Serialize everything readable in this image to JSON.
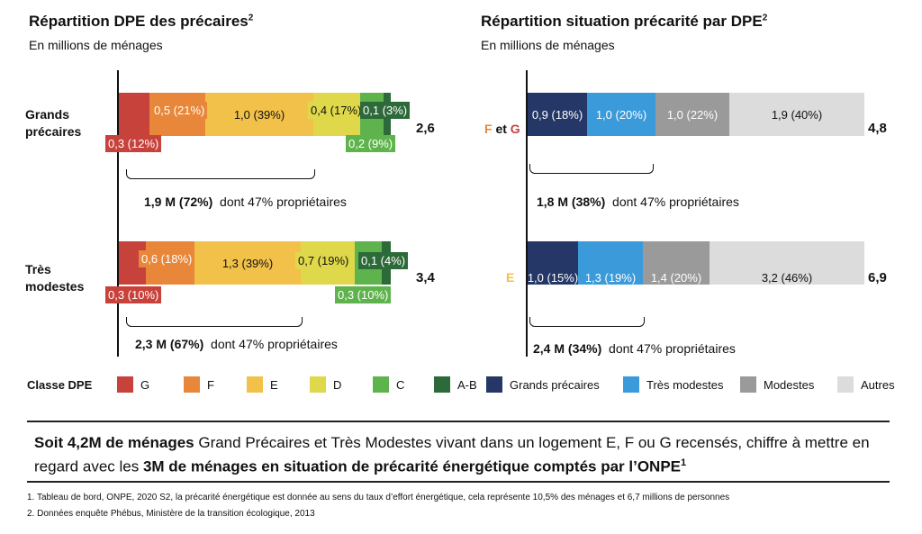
{
  "colors": {
    "G": "#c8423c",
    "F": "#e8873a",
    "E": "#f2c14a",
    "D": "#e0d84b",
    "C": "#5fb34d",
    "AB": "#2d6a3a",
    "grands": "#243766",
    "tres": "#3b9ad9",
    "modestes": "#9a9a9a",
    "autres": "#dcdcdc"
  },
  "left": {
    "title": "Répartition DPE des précaires",
    "title_sup": "2",
    "subtitle": "En millions de ménages",
    "rows": [
      {
        "label_line1": "Grands",
        "label_line2": "précaires",
        "total": "2,6",
        "labels": {
          "G": "0,3 (12%)",
          "F": "0,5 (21%)",
          "E": "1,0 (39%)",
          "D": "0,4 (17%)",
          "C": "0,2 (9%)",
          "AB": "0,1 (3%)"
        },
        "summary_bold": "1,9 M (72%)",
        "summary_text": "dont 47% propriétaires"
      },
      {
        "label_line1": "Très",
        "label_line2": "modestes",
        "total": "3,4",
        "labels": {
          "G": "0,3 (10%)",
          "F": "0,6 (18%)",
          "E": "1,3 (39%)",
          "D": "0,7 (19%)",
          "C": "0,3 (10%)",
          "AB": "0,1 (4%)"
        },
        "summary_bold": "2,3 M (67%)",
        "summary_text": "dont 47% propriétaires"
      }
    ],
    "legend_title": "Classe DPE",
    "legend": [
      "G",
      "F",
      "E",
      "D",
      "C",
      "A-B"
    ]
  },
  "right": {
    "title": "Répartition situation précarité par DPE",
    "title_sup": "2",
    "subtitle": "En millions de ménages",
    "rows": [
      {
        "label_a": "F",
        "label_mid": " et ",
        "label_b": "G",
        "total": "4,8",
        "labels": [
          "0,9 (18%)",
          "1,0 (20%)",
          "1,0 (22%)",
          "1,9 (40%)"
        ],
        "summary_bold": "1,8 M (38%)",
        "summary_text": "dont 47% propriétaires"
      },
      {
        "label_a": "E",
        "total": "6,9",
        "labels": [
          "1,0 (15%)",
          "1,3 (19%)",
          "1,4 (20%)",
          "3,2 (46%)"
        ],
        "summary_bold": "2,4 M (34%)",
        "summary_text": "dont 47% propriétaires"
      }
    ],
    "legend": [
      "Grands précaires",
      "Très modestes",
      "Modestes",
      "Autres"
    ]
  },
  "bottom": {
    "bold1": "Soit 4,2M de ménages",
    "text1": " Grand Précaires et Très Modestes vivant dans un logement E, F ou G recensés, chiffre à mettre en regard avec les ",
    "bold2": "3M de ménages en situation de précarité énergétique comptés par l’ONPE",
    "sup": "1"
  },
  "footnotes": [
    "1. Tableau de bord, ONPE, 2020 S2, la précarité énergétique est donnée au sens du taux d’effort énergétique, cela représente 10,5% des ménages et 6,7 millions de personnes",
    "2. Données enquête Phébus, Ministère de la transition écologique, 2013"
  ],
  "chart_data": [
    {
      "type": "bar",
      "title": "Répartition DPE des précaires",
      "subtitle": "En millions de ménages",
      "categories": [
        "Grands précaires",
        "Très modestes"
      ],
      "series": [
        {
          "name": "G",
          "values": [
            0.3,
            0.3
          ],
          "pct": [
            12,
            10
          ]
        },
        {
          "name": "F",
          "values": [
            0.5,
            0.6
          ],
          "pct": [
            21,
            18
          ]
        },
        {
          "name": "E",
          "values": [
            1.0,
            1.3
          ],
          "pct": [
            39,
            39
          ]
        },
        {
          "name": "D",
          "values": [
            0.4,
            0.7
          ],
          "pct": [
            17,
            19
          ]
        },
        {
          "name": "C",
          "values": [
            0.2,
            0.3
          ],
          "pct": [
            9,
            10
          ]
        },
        {
          "name": "A-B",
          "values": [
            0.1,
            0.1
          ],
          "pct": [
            3,
            4
          ]
        }
      ],
      "totals": [
        2.6,
        3.4
      ]
    },
    {
      "type": "bar",
      "title": "Répartition situation précarité par DPE",
      "subtitle": "En millions de ménages",
      "categories": [
        "F et G",
        "E"
      ],
      "series": [
        {
          "name": "Grands précaires",
          "values": [
            0.9,
            1.0
          ],
          "pct": [
            18,
            15
          ]
        },
        {
          "name": "Très modestes",
          "values": [
            1.0,
            1.3
          ],
          "pct": [
            20,
            19
          ]
        },
        {
          "name": "Modestes",
          "values": [
            1.0,
            1.4
          ],
          "pct": [
            22,
            20
          ]
        },
        {
          "name": "Autres",
          "values": [
            1.9,
            3.2
          ],
          "pct": [
            40,
            46
          ]
        }
      ],
      "totals": [
        4.8,
        6.9
      ]
    }
  ]
}
